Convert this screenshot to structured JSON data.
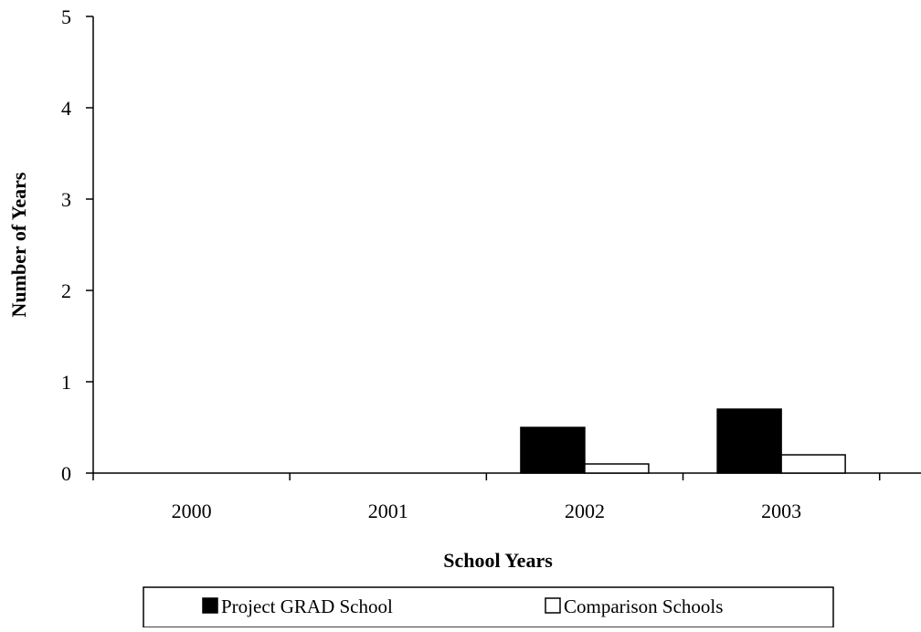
{
  "chart_data": {
    "type": "bar",
    "title": "",
    "xlabel": "School Years",
    "ylabel": "Number of Years",
    "categories": [
      "2000",
      "2001",
      "2002",
      "2003"
    ],
    "series": [
      {
        "name": "Project GRAD School",
        "color": "#000000",
        "values": [
          0,
          0,
          0.5,
          0.7
        ]
      },
      {
        "name": "Comparison Schools",
        "color": "#ffffff",
        "values": [
          0,
          0,
          0.1,
          0.2
        ]
      }
    ],
    "ylim": [
      0,
      5
    ],
    "yticks": [
      "0",
      "1",
      "2",
      "3",
      "4",
      "5"
    ],
    "grid": false,
    "legend_position": "bottom"
  }
}
